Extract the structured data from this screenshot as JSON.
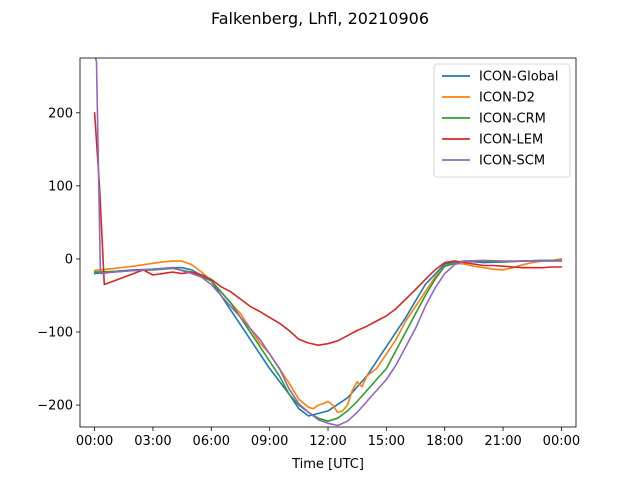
{
  "chart_data": {
    "type": "line",
    "title": "Falkenberg, Lhfl, 20210906",
    "xlabel": "Time [UTC]",
    "ylabel": "",
    "xlim": [
      -0.75,
      24.75
    ],
    "ylim": [
      -230,
      275
    ],
    "x_ticks": [
      0,
      3,
      6,
      9,
      12,
      15,
      18,
      21,
      24
    ],
    "x_tick_labels": [
      "00:00",
      "03:00",
      "06:00",
      "09:00",
      "12:00",
      "15:00",
      "18:00",
      "21:00",
      "00:00"
    ],
    "y_ticks": [
      -200,
      -100,
      0,
      100,
      200
    ],
    "y_tick_labels": [
      "−200",
      "−100",
      "0",
      "100",
      "200"
    ],
    "grid": false,
    "legend_position": "upper right",
    "series": [
      {
        "name": "ICON-Global",
        "color": "#1f77b4",
        "x": [
          0,
          1,
          2,
          3,
          4,
          4.5,
          5,
          6,
          7,
          8,
          9,
          10,
          10.5,
          11,
          12,
          13,
          14,
          15,
          16,
          17,
          18,
          19,
          20,
          21,
          22,
          23,
          24
        ],
        "y": [
          -20,
          -17,
          -15,
          -14,
          -12,
          -12,
          -15,
          -30,
          -70,
          -110,
          -150,
          -185,
          -205,
          -215,
          -208,
          -190,
          -160,
          -120,
          -80,
          -35,
          -7,
          -3,
          -5,
          -4,
          -3,
          -2,
          -2
        ]
      },
      {
        "name": "ICON-D2",
        "color": "#ff7f0e",
        "x": [
          0,
          1,
          2,
          3,
          3.5,
          4,
          4.5,
          5,
          5.5,
          6,
          6.5,
          7,
          7.5,
          8,
          8.5,
          9,
          9.5,
          10,
          10.5,
          11,
          11.25,
          11.5,
          11.75,
          12,
          12.25,
          12.5,
          12.75,
          13,
          13.25,
          13.5,
          13.75,
          14,
          14.25,
          14.5,
          14.75,
          15,
          15.5,
          16,
          16.5,
          17,
          17.5,
          18,
          18.5,
          19,
          19.5,
          20,
          20.5,
          21,
          21.5,
          22,
          22.5,
          23,
          23.5,
          24
        ],
        "y": [
          -16,
          -13,
          -10,
          -6,
          -4,
          -3,
          -3,
          -8,
          -18,
          -30,
          -45,
          -60,
          -75,
          -95,
          -115,
          -130,
          -150,
          -170,
          -192,
          -203,
          -205,
          -200,
          -198,
          -195,
          -200,
          -210,
          -208,
          -200,
          -180,
          -168,
          -175,
          -160,
          -155,
          -150,
          -140,
          -130,
          -110,
          -85,
          -65,
          -45,
          -25,
          -10,
          -6,
          -7,
          -10,
          -12,
          -14,
          -15,
          -12,
          -8,
          -5,
          -3,
          -2,
          0
        ]
      },
      {
        "name": "ICON-CRM",
        "color": "#2ca02c",
        "x": [
          0,
          1,
          2,
          3,
          4,
          5,
          6,
          6.5,
          7,
          7.5,
          8,
          8.5,
          9,
          9.5,
          10,
          10.5,
          11,
          11.5,
          12,
          12.5,
          13,
          13.5,
          14,
          14.5,
          15,
          15.5,
          16,
          16.5,
          17,
          17.5,
          18,
          19,
          20,
          21,
          22,
          23,
          24
        ],
        "y": [
          -18,
          -17,
          -16,
          -15,
          -13,
          -18,
          -30,
          -45,
          -60,
          -80,
          -100,
          -120,
          -140,
          -160,
          -185,
          -200,
          -210,
          -218,
          -222,
          -218,
          -208,
          -195,
          -180,
          -165,
          -150,
          -125,
          -100,
          -75,
          -50,
          -28,
          -10,
          -3,
          -3,
          -4,
          -3,
          -2,
          -2
        ]
      },
      {
        "name": "ICON-LEM",
        "color": "#d62728",
        "x": [
          0,
          0.25,
          0.5,
          1,
          1.5,
          2,
          2.5,
          3,
          3.5,
          4,
          4.5,
          5,
          5.5,
          6,
          6.5,
          7,
          7.5,
          8,
          8.5,
          9,
          9.5,
          10,
          10.5,
          11,
          11.5,
          12,
          12.5,
          13,
          13.5,
          14,
          14.5,
          15,
          15.5,
          16,
          16.5,
          17,
          17.5,
          18,
          18.5,
          19,
          19.5,
          20,
          20.5,
          21,
          21.5,
          22,
          22.5,
          23,
          23.5,
          24
        ],
        "y": [
          200,
          100,
          -35,
          -30,
          -25,
          -20,
          -15,
          -22,
          -20,
          -18,
          -20,
          -18,
          -22,
          -28,
          -38,
          -45,
          -55,
          -65,
          -72,
          -80,
          -88,
          -98,
          -110,
          -115,
          -118,
          -116,
          -112,
          -105,
          -98,
          -92,
          -85,
          -78,
          -68,
          -55,
          -42,
          -28,
          -15,
          -5,
          -3,
          -5,
          -7,
          -9,
          -9,
          -10,
          -11,
          -12,
          -12,
          -12,
          -11,
          -11
        ]
      },
      {
        "name": "ICON-SCM",
        "color": "#9467bd",
        "x": [
          0,
          0.1,
          0.3,
          1,
          2,
          3,
          4,
          5,
          5.5,
          6,
          6.5,
          7,
          7.5,
          8,
          8.5,
          9,
          9.5,
          10,
          10.5,
          11,
          11.5,
          12,
          12.5,
          13,
          13.5,
          14,
          14.5,
          15,
          15.5,
          16,
          16.5,
          17,
          17.5,
          18,
          18.5,
          19,
          20,
          21,
          22,
          23,
          24
        ],
        "y": [
          280,
          270,
          -20,
          -18,
          -16,
          -14,
          -12,
          -20,
          -25,
          -35,
          -50,
          -65,
          -80,
          -95,
          -110,
          -130,
          -150,
          -178,
          -198,
          -210,
          -220,
          -225,
          -228,
          -222,
          -210,
          -195,
          -180,
          -165,
          -145,
          -120,
          -95,
          -65,
          -40,
          -20,
          -8,
          -3,
          -2,
          -3,
          -3,
          -3,
          -3
        ]
      }
    ]
  }
}
